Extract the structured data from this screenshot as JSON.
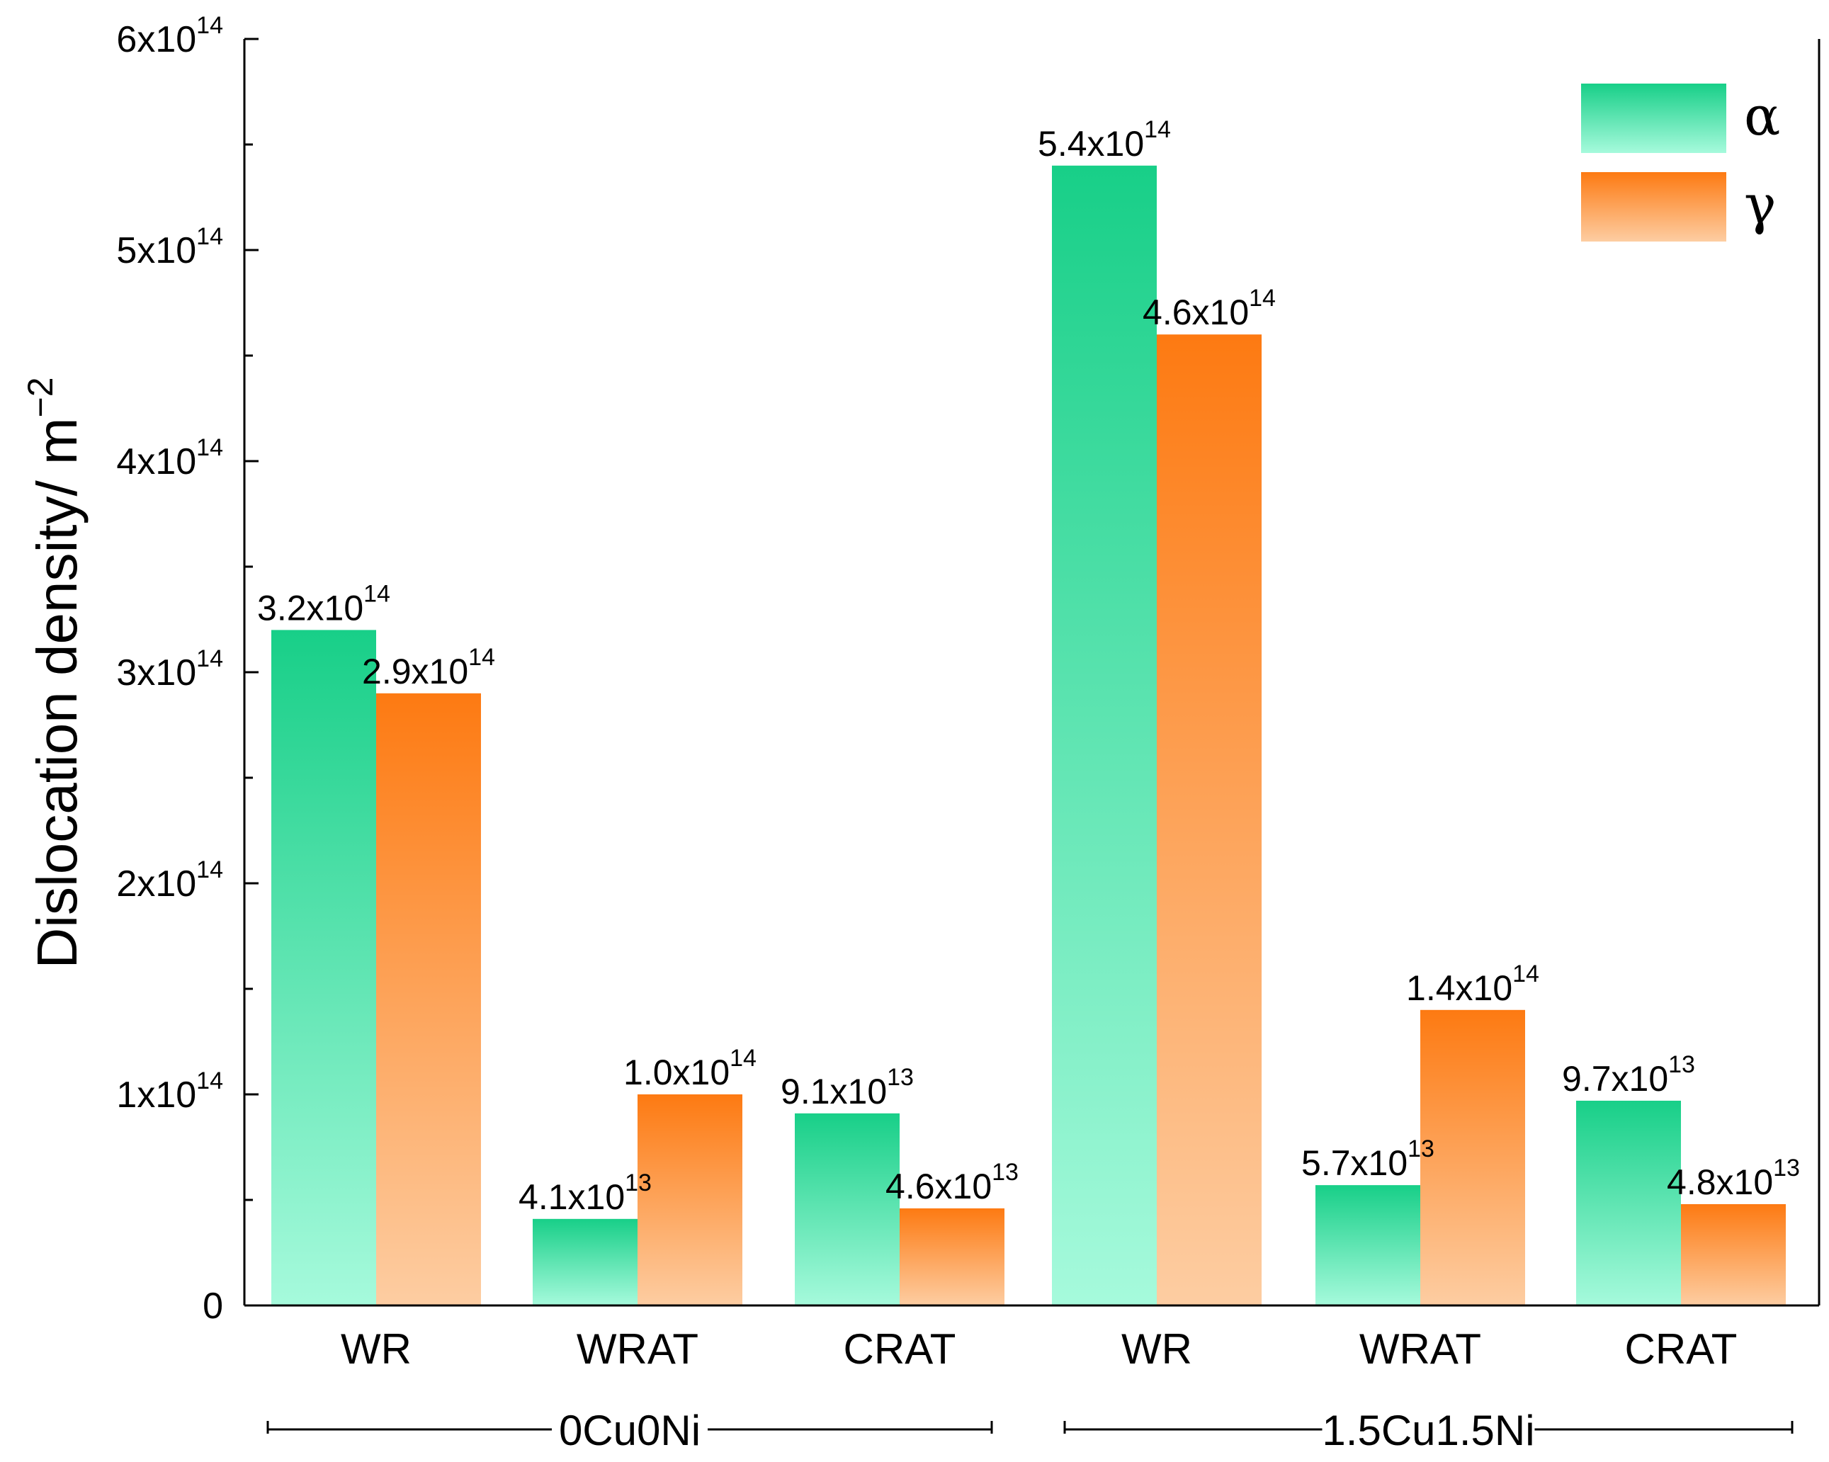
{
  "chart_data": {
    "type": "bar",
    "title": "",
    "xlabel": "",
    "ylabel": "Dislocation density/ m",
    "ylabel_exponent": "−2",
    "ylim": [
      0,
      600000000000000.0
    ],
    "yticks": [
      {
        "value": 0,
        "mantissa": "0",
        "exponent": ""
      },
      {
        "value": 100000000000000.0,
        "mantissa": "1x10",
        "exponent": "14"
      },
      {
        "value": 200000000000000.0,
        "mantissa": "2x10",
        "exponent": "14"
      },
      {
        "value": 300000000000000.0,
        "mantissa": "3x10",
        "exponent": "14"
      },
      {
        "value": 400000000000000.0,
        "mantissa": "4x10",
        "exponent": "14"
      },
      {
        "value": 500000000000000.0,
        "mantissa": "5x10",
        "exponent": "14"
      },
      {
        "value": 600000000000000.0,
        "mantissa": "6x10",
        "exponent": "14"
      }
    ],
    "categories": [
      "WR",
      "WRAT",
      "CRAT",
      "WR",
      "WRAT",
      "CRAT"
    ],
    "groups": [
      {
        "label": "0Cu0Ni",
        "categories": [
          0,
          1,
          2
        ]
      },
      {
        "label": "1.5Cu1.5Ni",
        "categories": [
          3,
          4,
          5
        ]
      }
    ],
    "series": [
      {
        "name": "α",
        "colors": {
          "top": "#18cf88",
          "bottom": "#a6fadc"
        },
        "values": [
          320000000000000.0,
          41000000000000.0,
          91000000000000.0,
          540000000000000.0,
          57000000000000.0,
          97000000000000.0
        ],
        "labels": [
          {
            "mantissa": "3.2x10",
            "exponent": "14"
          },
          {
            "mantissa": "4.1x10",
            "exponent": "13"
          },
          {
            "mantissa": "9.1x10",
            "exponent": "13"
          },
          {
            "mantissa": "5.4x10",
            "exponent": "14"
          },
          {
            "mantissa": "5.7x10",
            "exponent": "13"
          },
          {
            "mantissa": "9.7x10",
            "exponent": "13"
          }
        ]
      },
      {
        "name": "γ",
        "colors": {
          "top": "#fd7a12",
          "bottom": "#fdcda2"
        },
        "values": [
          290000000000000.0,
          100000000000000.0,
          46000000000000.0,
          460000000000000.0,
          140000000000000.0,
          48000000000000.0
        ],
        "labels": [
          {
            "mantissa": "2.9x10",
            "exponent": "14"
          },
          {
            "mantissa": "1.0x10",
            "exponent": "14"
          },
          {
            "mantissa": "4.6x10",
            "exponent": "13"
          },
          {
            "mantissa": "4.6x10",
            "exponent": "14"
          },
          {
            "mantissa": "1.4x10",
            "exponent": "14"
          },
          {
            "mantissa": "4.8x10",
            "exponent": "13"
          }
        ]
      }
    ],
    "legend": {
      "position": "top-right"
    },
    "grid": false
  }
}
